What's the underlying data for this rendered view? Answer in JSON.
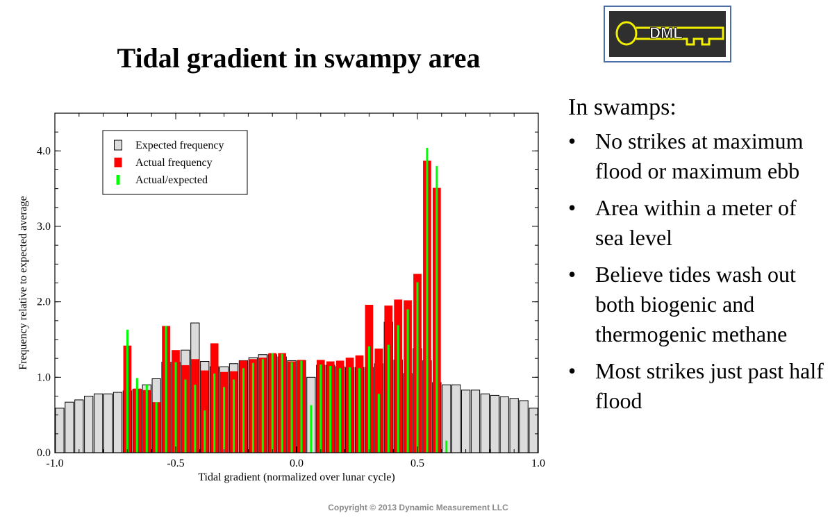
{
  "slide": {
    "title": "Tidal gradient in swampy area",
    "logo_text": "DML",
    "copyright": "Copyright © 2013 Dynamic Measurement LLC"
  },
  "bullets": {
    "heading": "In swamps:",
    "marker": "•",
    "items": [
      "No strikes at maximum flood or maximum ebb",
      "Area within a meter of sea level",
      "Believe tides wash out both biogenic and thermogenic methane",
      "Most strikes just past half flood"
    ]
  },
  "colors": {
    "expected_fill": "#dcdcdc",
    "actual_fill": "#ff0000",
    "ratio_fill": "#00ff00",
    "logo_key": "#f0f000",
    "logo_bg": "#2f2f2f",
    "logo_border": "#4b6ea8"
  },
  "chart_data": {
    "type": "bar",
    "xlabel": "Tidal gradient (normalized over lunar cycle)",
    "ylabel": "Frequency relative to expected average",
    "xlim": [
      -1.0,
      1.0
    ],
    "ylim": [
      0.0,
      4.5
    ],
    "xticks": [
      -1.0,
      -0.5,
      0.0,
      0.5,
      1.0
    ],
    "xtick_labels": [
      "-1.0",
      "-0.5",
      "0.0",
      "0.5",
      "1.0"
    ],
    "yticks": [
      0.0,
      1.0,
      2.0,
      3.0,
      4.0
    ],
    "ytick_labels": [
      "0.0",
      "1.0",
      "2.0",
      "3.0",
      "4.0"
    ],
    "legend_position": "top-left",
    "bin_width": 0.04,
    "x": [
      -0.98,
      -0.94,
      -0.9,
      -0.86,
      -0.82,
      -0.78,
      -0.74,
      -0.7,
      -0.66,
      -0.62,
      -0.58,
      -0.54,
      -0.5,
      -0.46,
      -0.42,
      -0.38,
      -0.34,
      -0.3,
      -0.26,
      -0.22,
      -0.18,
      -0.14,
      -0.1,
      -0.06,
      -0.02,
      0.02,
      0.06,
      0.1,
      0.14,
      0.18,
      0.22,
      0.26,
      0.3,
      0.34,
      0.38,
      0.42,
      0.46,
      0.5,
      0.54,
      0.58,
      0.62,
      0.66,
      0.7,
      0.74,
      0.78,
      0.82,
      0.86,
      0.9,
      0.94,
      0.98
    ],
    "series": [
      {
        "name": "Expected frequency",
        "values": [
          0.59,
          0.67,
          0.7,
          0.75,
          0.78,
          0.78,
          0.8,
          0.82,
          0.84,
          0.9,
          0.98,
          1.2,
          1.2,
          1.36,
          1.72,
          1.21,
          1.14,
          1.14,
          1.18,
          1.22,
          1.26,
          1.3,
          1.3,
          1.27,
          1.22,
          1.22,
          1.0,
          1.16,
          1.16,
          1.14,
          1.13,
          1.13,
          1.13,
          1.18,
          1.73,
          1.23,
          1.05,
          1.38,
          1.22,
          0.93,
          0.9,
          0.9,
          0.83,
          0.83,
          0.78,
          0.76,
          0.74,
          0.72,
          0.69,
          0.59
        ]
      },
      {
        "name": "Actual frequency",
        "values": [
          0,
          0,
          0,
          0,
          0,
          0,
          0,
          1.42,
          0.85,
          0.83,
          0.67,
          1.68,
          1.36,
          1.16,
          1.24,
          1.09,
          1.45,
          1.07,
          1.08,
          1.22,
          1.24,
          1.26,
          1.32,
          1.32,
          1.21,
          1.23,
          0,
          1.23,
          1.21,
          1.22,
          1.26,
          1.29,
          1.96,
          1.38,
          1.95,
          2.03,
          2.02,
          2.37,
          3.87,
          3.51,
          0,
          0,
          0,
          0,
          0,
          0,
          0,
          0,
          0,
          0
        ]
      },
      {
        "name": "Actual/expected",
        "values": [
          0,
          0,
          0,
          0,
          0,
          0,
          0,
          1.63,
          0.99,
          0.9,
          0.67,
          1.68,
          1.2,
          0.97,
          0.9,
          0.56,
          1.05,
          0.87,
          0.97,
          1.12,
          1.19,
          1.24,
          1.32,
          1.31,
          1.2,
          1.22,
          0.63,
          1.17,
          1.15,
          1.12,
          1.13,
          1.12,
          1.41,
          0.78,
          1.43,
          1.69,
          1.9,
          2.26,
          4.04,
          3.8,
          0.16,
          0,
          0,
          0,
          0,
          0,
          0,
          0,
          0,
          0
        ]
      }
    ]
  }
}
